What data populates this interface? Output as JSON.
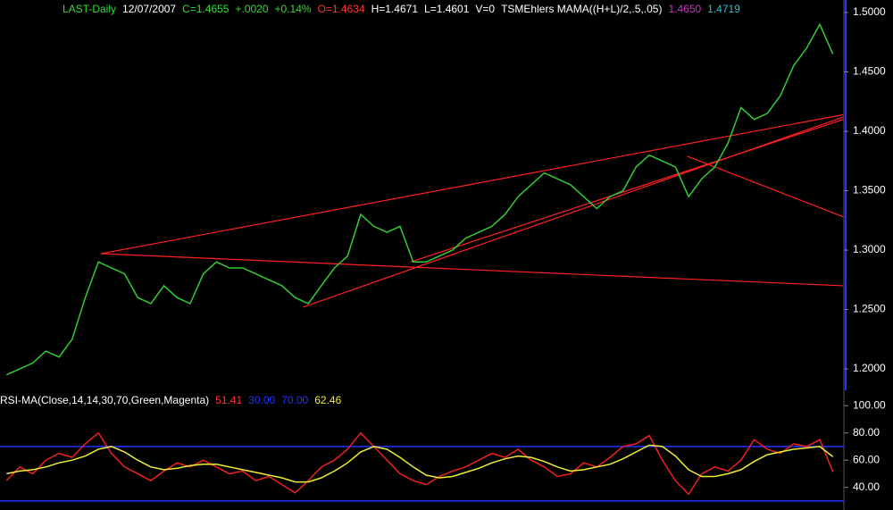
{
  "chart_data": [
    {
      "type": "line",
      "header": [
        {
          "text": "LAST-Daily",
          "color": "#33dd33"
        },
        {
          "text": "12/07/2007",
          "color": "#ffffff"
        },
        {
          "text": "C=1.4655",
          "color": "#33dd33"
        },
        {
          "text": "+.0020",
          "color": "#33dd33"
        },
        {
          "text": "+0.14%",
          "color": "#33dd33"
        },
        {
          "text": "O=1.4634",
          "color": "#ff3030"
        },
        {
          "text": "H=1.4671",
          "color": "#ffffff"
        },
        {
          "text": "L=1.4601",
          "color": "#ffffff"
        },
        {
          "text": "V=0",
          "color": "#ffffff"
        },
        {
          "text": "TSMEhlers MAMA((H+L)/2,.5,.05)",
          "color": "#ffffff"
        },
        {
          "text": "1.4650",
          "color": "#cc33cc"
        },
        {
          "text": "1.4719",
          "color": "#33bbcc"
        }
      ],
      "series": [
        {
          "color": "#33cc33",
          "values": [
            1.195,
            1.2,
            1.205,
            1.215,
            1.21,
            1.225,
            1.26,
            1.29,
            1.285,
            1.28,
            1.26,
            1.255,
            1.27,
            1.26,
            1.255,
            1.28,
            1.29,
            1.285,
            1.285,
            1.28,
            1.275,
            1.27,
            1.26,
            1.255,
            1.27,
            1.285,
            1.295,
            1.33,
            1.32,
            1.315,
            1.32,
            1.29,
            1.29,
            1.295,
            1.3,
            1.31,
            1.315,
            1.32,
            1.33,
            1.345,
            1.355,
            1.365,
            1.36,
            1.355,
            1.345,
            1.335,
            1.345,
            1.35,
            1.37,
            1.38,
            1.375,
            1.37,
            1.345,
            1.36,
            1.37,
            1.39,
            1.42,
            1.41,
            1.415,
            1.43,
            1.455,
            1.47,
            1.49,
            1.465
          ]
        }
      ],
      "trendline_color": "#ff2020",
      "trendlines": [
        [
          [
            7.2,
            1.297
          ],
          [
            63.8,
            1.27
          ]
        ],
        [
          [
            7.2,
            1.297
          ],
          [
            63.8,
            1.414
          ]
        ],
        [
          [
            22.6,
            1.252
          ],
          [
            63.8,
            1.412
          ]
        ],
        [
          [
            30.8,
            1.29
          ],
          [
            63.8,
            1.41
          ]
        ],
        [
          [
            51.9,
            1.379
          ],
          [
            63.8,
            1.328
          ]
        ]
      ],
      "ylim": [
        1.182,
        1.5105
      ],
      "yticks": [
        {
          "value": 1.2,
          "label": "1.2000"
        },
        {
          "value": 1.25,
          "label": "1.2500"
        },
        {
          "value": 1.3,
          "label": "1.3000"
        },
        {
          "value": 1.35,
          "label": "1.3500"
        },
        {
          "value": 1.4,
          "label": "1.4000"
        },
        {
          "value": 1.45,
          "label": "1.4500"
        },
        {
          "value": 1.5,
          "label": "1.5000"
        }
      ]
    },
    {
      "type": "line",
      "header": [
        {
          "text": "RSI-MA(Close,14,14,30,70,Green,Magenta)",
          "color": "#ffffff"
        },
        {
          "text": "51.41",
          "color": "#ff3030"
        }
      ],
      "levels": [
        {
          "value": 30,
          "label": "30.00",
          "color": "#2233ff"
        },
        {
          "value": 70,
          "label": "70.00",
          "color": "#2233ff"
        }
      ],
      "footer": [
        {
          "text": "62.46",
          "color": "#eeee33"
        }
      ],
      "series": [
        {
          "color": "#ee2020",
          "values": [
            45,
            55,
            50,
            60,
            65,
            62,
            72,
            80,
            65,
            55,
            50,
            45,
            52,
            58,
            55,
            60,
            55,
            50,
            52,
            45,
            48,
            42,
            36,
            45,
            55,
            60,
            68,
            80,
            70,
            60,
            50,
            45,
            42,
            48,
            52,
            55,
            60,
            65,
            62,
            68,
            60,
            55,
            48,
            50,
            58,
            55,
            62,
            70,
            72,
            78,
            60,
            45,
            35,
            50,
            55,
            52,
            60,
            75,
            68,
            65,
            72,
            70,
            75,
            51.41
          ]
        },
        {
          "color": "#eeee33",
          "values": [
            50,
            52,
            53,
            55,
            58,
            60,
            63,
            68,
            70,
            66,
            60,
            55,
            53,
            54,
            56,
            57,
            57,
            55,
            53,
            51,
            49,
            47,
            44,
            44,
            47,
            52,
            58,
            66,
            70,
            68,
            62,
            55,
            49,
            47,
            48,
            51,
            54,
            58,
            61,
            63,
            62,
            59,
            55,
            52,
            53,
            55,
            57,
            61,
            66,
            71,
            70,
            63,
            53,
            48,
            48,
            50,
            53,
            59,
            64,
            66,
            68,
            69,
            70,
            62.46
          ]
        }
      ],
      "ylim": [
        23.4,
        109.3
      ],
      "yticks": [
        {
          "value": 40,
          "label": "40.00"
        },
        {
          "value": 60,
          "label": "60.00"
        },
        {
          "value": 80,
          "label": "80.00"
        },
        {
          "value": 100,
          "label": "100.00"
        }
      ]
    }
  ]
}
